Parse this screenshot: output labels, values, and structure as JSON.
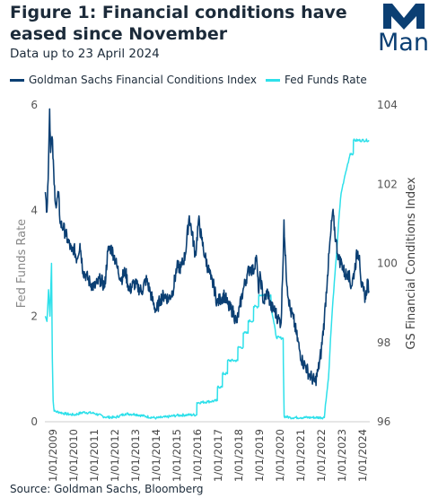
{
  "header": {
    "title": "Figure 1: Financial conditions have eased since November",
    "subtitle": "Data up to 23 April 2024",
    "logo_text": "Man",
    "source": "Source: Goldman Sachs, Bloomberg"
  },
  "colors": {
    "gs": "#0b3f73",
    "ffr": "#2ee0ea",
    "axis": "#999999"
  },
  "chart_data": {
    "type": "line",
    "x_tick_labels": [
      "1/01/2009",
      "1/01/2010",
      "1/01/2011",
      "1/01/2012",
      "1/01/2013",
      "1/01/2014",
      "1/01/2015",
      "1/01/2016",
      "1/01/2017",
      "1/01/2018",
      "1/01/2019",
      "1/01/2020",
      "1/01/2021",
      "1/01/2022",
      "1/01/2023",
      "1/01/2024"
    ],
    "x_tick_years": [
      2009,
      2010,
      2011,
      2012,
      2013,
      2014,
      2015,
      2016,
      2017,
      2018,
      2019,
      2020,
      2021,
      2022,
      2023,
      2024
    ],
    "xlim": [
      2008.6,
      2024.35
    ],
    "left_axis": {
      "label": "Fed Funds Rate",
      "ticks": [
        0,
        2,
        4,
        6
      ],
      "ylim": [
        0,
        6
      ]
    },
    "right_axis": {
      "label": "GS Financial Conditions Index",
      "ticks": [
        96,
        98,
        100,
        102,
        104
      ],
      "ylim": [
        96,
        104
      ]
    },
    "legend_position": "top",
    "series": [
      {
        "name": "Goldman Sachs Financial Conditions Index",
        "axis": "right",
        "points": [
          [
            2008.62,
            101.8
          ],
          [
            2008.7,
            101.3
          ],
          [
            2008.78,
            102.6
          ],
          [
            2008.83,
            103.9
          ],
          [
            2008.88,
            102.8
          ],
          [
            2008.95,
            103.2
          ],
          [
            2009.05,
            102.0
          ],
          [
            2009.15,
            101.4
          ],
          [
            2009.25,
            101.8
          ],
          [
            2009.35,
            101.0
          ],
          [
            2009.5,
            100.9
          ],
          [
            2009.7,
            100.6
          ],
          [
            2009.9,
            100.3
          ],
          [
            2010.0,
            100.4
          ],
          [
            2010.15,
            100.1
          ],
          [
            2010.3,
            100.5
          ],
          [
            2010.45,
            99.8
          ],
          [
            2010.6,
            99.7
          ],
          [
            2010.8,
            99.5
          ],
          [
            2011.0,
            99.4
          ],
          [
            2011.15,
            99.5
          ],
          [
            2011.3,
            99.6
          ],
          [
            2011.5,
            99.4
          ],
          [
            2011.65,
            100.3
          ],
          [
            2011.8,
            100.4
          ],
          [
            2011.95,
            100.2
          ],
          [
            2012.1,
            99.9
          ],
          [
            2012.3,
            99.6
          ],
          [
            2012.5,
            99.8
          ],
          [
            2012.7,
            99.3
          ],
          [
            2012.9,
            99.5
          ],
          [
            2013.1,
            99.4
          ],
          [
            2013.3,
            99.3
          ],
          [
            2013.5,
            99.6
          ],
          [
            2013.7,
            99.3
          ],
          [
            2013.85,
            99.0
          ],
          [
            2014.0,
            98.8
          ],
          [
            2014.2,
            99.1
          ],
          [
            2014.4,
            99.2
          ],
          [
            2014.6,
            99.1
          ],
          [
            2014.8,
            99.3
          ],
          [
            2015.0,
            99.9
          ],
          [
            2015.2,
            99.9
          ],
          [
            2015.4,
            100.2
          ],
          [
            2015.6,
            101.2
          ],
          [
            2015.75,
            100.7
          ],
          [
            2015.9,
            100.2
          ],
          [
            2016.05,
            101.1
          ],
          [
            2016.2,
            100.6
          ],
          [
            2016.35,
            100.2
          ],
          [
            2016.5,
            99.9
          ],
          [
            2016.65,
            99.6
          ],
          [
            2016.8,
            99.4
          ],
          [
            2016.95,
            99.0
          ],
          [
            2017.1,
            99.1
          ],
          [
            2017.3,
            99.2
          ],
          [
            2017.5,
            98.9
          ],
          [
            2017.7,
            98.8
          ],
          [
            2017.9,
            98.5
          ],
          [
            2018.05,
            98.9
          ],
          [
            2018.2,
            99.3
          ],
          [
            2018.4,
            99.7
          ],
          [
            2018.55,
            99.9
          ],
          [
            2018.7,
            99.8
          ],
          [
            2018.85,
            100.2
          ],
          [
            2018.95,
            99.3
          ],
          [
            2019.05,
            99.7
          ],
          [
            2019.2,
            99.0
          ],
          [
            2019.4,
            99.3
          ],
          [
            2019.55,
            98.9
          ],
          [
            2019.75,
            98.8
          ],
          [
            2019.9,
            98.6
          ],
          [
            2020.05,
            98.5
          ],
          [
            2020.12,
            99.6
          ],
          [
            2020.19,
            101.1
          ],
          [
            2020.25,
            100.2
          ],
          [
            2020.35,
            99.4
          ],
          [
            2020.5,
            98.8
          ],
          [
            2020.65,
            98.6
          ],
          [
            2020.8,
            98.2
          ],
          [
            2020.95,
            97.8
          ],
          [
            2021.1,
            97.5
          ],
          [
            2021.25,
            97.4
          ],
          [
            2021.4,
            97.2
          ],
          [
            2021.55,
            97.1
          ],
          [
            2021.7,
            97.0
          ],
          [
            2021.85,
            97.3
          ],
          [
            2022.0,
            97.8
          ],
          [
            2022.15,
            98.6
          ],
          [
            2022.3,
            99.7
          ],
          [
            2022.45,
            100.7
          ],
          [
            2022.55,
            101.3
          ],
          [
            2022.7,
            100.6
          ],
          [
            2022.85,
            100.1
          ],
          [
            2023.0,
            100.0
          ],
          [
            2023.15,
            99.7
          ],
          [
            2023.3,
            99.8
          ],
          [
            2023.45,
            99.4
          ],
          [
            2023.6,
            99.8
          ],
          [
            2023.75,
            100.3
          ],
          [
            2023.85,
            100.2
          ],
          [
            2023.95,
            99.4
          ],
          [
            2024.05,
            99.3
          ],
          [
            2024.15,
            99.1
          ],
          [
            2024.25,
            99.6
          ],
          [
            2024.31,
            99.3
          ]
        ]
      },
      {
        "name": "Fed Funds Rate",
        "axis": "left",
        "points": [
          [
            2008.62,
            2.0
          ],
          [
            2008.7,
            1.9
          ],
          [
            2008.78,
            2.5
          ],
          [
            2008.85,
            2.0
          ],
          [
            2008.92,
            3.0
          ],
          [
            2008.96,
            1.2
          ],
          [
            2009.0,
            0.4
          ],
          [
            2009.05,
            0.2
          ],
          [
            2009.3,
            0.18
          ],
          [
            2009.6,
            0.15
          ],
          [
            2010.0,
            0.13
          ],
          [
            2010.5,
            0.18
          ],
          [
            2011.0,
            0.16
          ],
          [
            2011.5,
            0.09
          ],
          [
            2012.0,
            0.08
          ],
          [
            2012.5,
            0.15
          ],
          [
            2013.0,
            0.14
          ],
          [
            2013.5,
            0.1
          ],
          [
            2014.0,
            0.07
          ],
          [
            2014.5,
            0.09
          ],
          [
            2015.0,
            0.12
          ],
          [
            2015.5,
            0.13
          ],
          [
            2015.96,
            0.13
          ],
          [
            2015.97,
            0.36
          ],
          [
            2016.5,
            0.38
          ],
          [
            2016.96,
            0.4
          ],
          [
            2016.97,
            0.66
          ],
          [
            2017.2,
            0.66
          ],
          [
            2017.21,
            0.91
          ],
          [
            2017.45,
            0.91
          ],
          [
            2017.46,
            1.16
          ],
          [
            2017.95,
            1.16
          ],
          [
            2017.96,
            1.41
          ],
          [
            2018.21,
            1.41
          ],
          [
            2018.22,
            1.68
          ],
          [
            2018.45,
            1.68
          ],
          [
            2018.46,
            1.91
          ],
          [
            2018.71,
            1.91
          ],
          [
            2018.72,
            2.18
          ],
          [
            2018.96,
            2.18
          ],
          [
            2018.97,
            2.4
          ],
          [
            2019.55,
            2.4
          ],
          [
            2019.58,
            2.13
          ],
          [
            2019.7,
            1.88
          ],
          [
            2019.82,
            1.6
          ],
          [
            2020.15,
            1.58
          ],
          [
            2020.16,
            1.1
          ],
          [
            2020.2,
            0.1
          ],
          [
            2020.5,
            0.08
          ],
          [
            2021.0,
            0.08
          ],
          [
            2021.5,
            0.08
          ],
          [
            2022.15,
            0.08
          ],
          [
            2022.2,
            0.33
          ],
          [
            2022.35,
            0.83
          ],
          [
            2022.45,
            1.58
          ],
          [
            2022.57,
            2.33
          ],
          [
            2022.72,
            3.08
          ],
          [
            2022.85,
            3.83
          ],
          [
            2022.96,
            4.33
          ],
          [
            2023.1,
            4.58
          ],
          [
            2023.25,
            4.83
          ],
          [
            2023.4,
            5.08
          ],
          [
            2023.55,
            5.08
          ],
          [
            2023.56,
            5.33
          ],
          [
            2024.31,
            5.33
          ]
        ]
      }
    ]
  }
}
